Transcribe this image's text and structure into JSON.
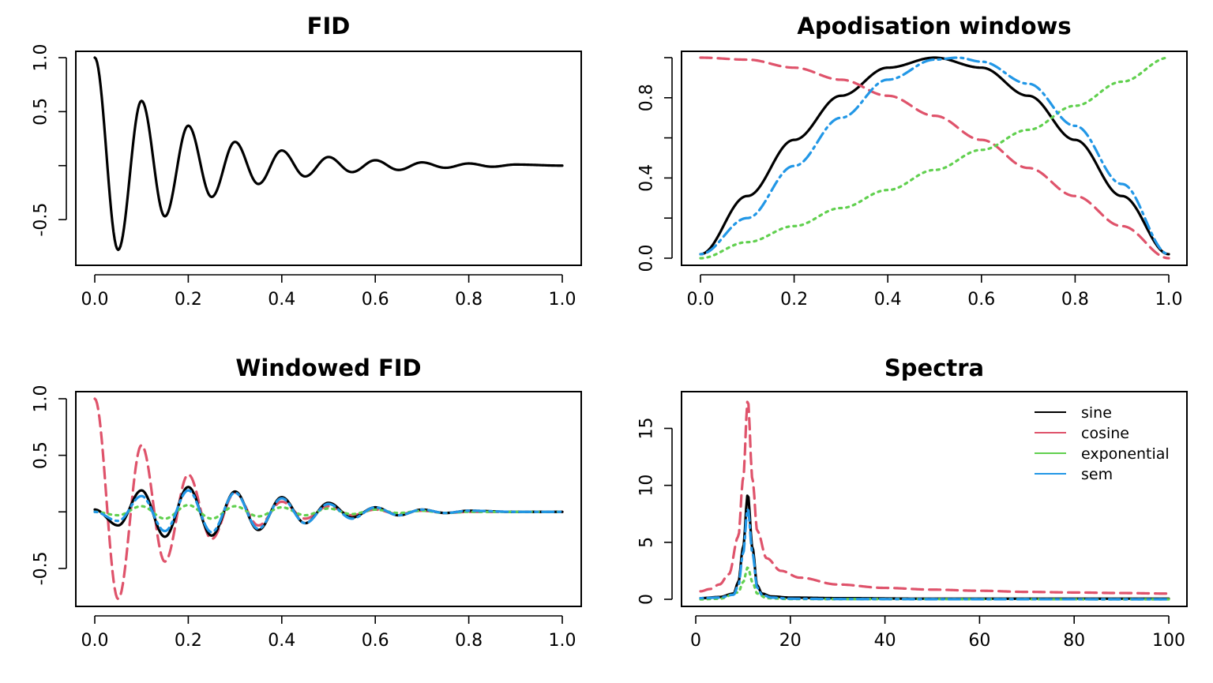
{
  "chart_data": [
    {
      "type": "line",
      "title": "FID",
      "xlabel": "",
      "ylabel": "",
      "xlim": [
        0,
        1
      ],
      "ylim": [
        -0.85,
        1.0
      ],
      "xticks": [
        0,
        0.2,
        0.4,
        0.6,
        0.8,
        1.0
      ],
      "xtick_labels": [
        "0.0",
        "0.2",
        "0.4",
        "0.6",
        "0.8",
        "1.0"
      ],
      "yticks": [
        -0.5,
        0,
        0.5,
        1.0
      ],
      "ytick_labels": [
        "-0.5",
        "",
        "0.5",
        "1.0"
      ],
      "grid": false,
      "series": [
        {
          "color": "#000000",
          "style": "solid",
          "x": [
            0,
            0.05,
            0.1,
            0.15,
            0.2,
            0.25,
            0.3,
            0.35,
            0.4,
            0.45,
            0.5,
            0.55,
            0.6,
            0.65,
            0.7,
            0.75,
            0.8,
            0.85,
            0.9,
            1.0
          ],
          "y": [
            1.0,
            -0.78,
            0.6,
            -0.47,
            0.37,
            -0.29,
            0.22,
            -0.17,
            0.14,
            -0.1,
            0.08,
            -0.06,
            0.05,
            -0.04,
            0.03,
            -0.02,
            0.02,
            -0.01,
            0.01,
            0.0
          ]
        }
      ]
    },
    {
      "type": "line",
      "title": "Apodisation windows",
      "xlabel": "",
      "ylabel": "",
      "xlim": [
        0,
        1
      ],
      "ylim": [
        0,
        1.0
      ],
      "xticks": [
        0,
        0.2,
        0.4,
        0.6,
        0.8,
        1.0
      ],
      "xtick_labels": [
        "0.0",
        "0.2",
        "0.4",
        "0.6",
        "0.8",
        "1.0"
      ],
      "yticks": [
        0,
        0.2,
        0.4,
        0.6,
        0.8,
        1.0
      ],
      "ytick_labels": [
        "0.0",
        "",
        "0.4",
        "",
        "0.8",
        ""
      ],
      "grid": false,
      "series": [
        {
          "color": "#000000",
          "style": "solid",
          "x": [
            0,
            0.1,
            0.2,
            0.3,
            0.4,
            0.5,
            0.6,
            0.7,
            0.8,
            0.9,
            1.0
          ],
          "y": [
            0.02,
            0.31,
            0.59,
            0.81,
            0.95,
            1.0,
            0.95,
            0.81,
            0.59,
            0.31,
            0.02
          ]
        },
        {
          "color": "#DF536B",
          "style": "dashed",
          "x": [
            0,
            0.1,
            0.2,
            0.3,
            0.4,
            0.5,
            0.6,
            0.7,
            0.8,
            0.9,
            1.0
          ],
          "y": [
            1.0,
            0.99,
            0.95,
            0.89,
            0.81,
            0.71,
            0.59,
            0.45,
            0.31,
            0.16,
            0.0
          ]
        },
        {
          "color": "#61D04F",
          "style": "dotted",
          "x": [
            0,
            0.1,
            0.2,
            0.3,
            0.4,
            0.5,
            0.6,
            0.7,
            0.8,
            0.9,
            1.0
          ],
          "y": [
            0.0,
            0.08,
            0.16,
            0.25,
            0.34,
            0.44,
            0.54,
            0.64,
            0.76,
            0.88,
            1.0
          ]
        },
        {
          "color": "#2297E6",
          "style": "dotdash",
          "x": [
            0,
            0.1,
            0.2,
            0.3,
            0.4,
            0.5,
            0.55,
            0.6,
            0.7,
            0.8,
            0.9,
            1.0
          ],
          "y": [
            0.02,
            0.2,
            0.46,
            0.7,
            0.89,
            0.99,
            1.0,
            0.98,
            0.87,
            0.66,
            0.37,
            0.02
          ]
        }
      ]
    },
    {
      "type": "line",
      "title": "Windowed FID",
      "xlabel": "",
      "ylabel": "",
      "xlim": [
        0,
        1
      ],
      "ylim": [
        -0.78,
        1.0
      ],
      "xticks": [
        0,
        0.2,
        0.4,
        0.6,
        0.8,
        1.0
      ],
      "xtick_labels": [
        "0.0",
        "0.2",
        "0.4",
        "0.6",
        "0.8",
        "1.0"
      ],
      "yticks": [
        -0.5,
        0,
        0.5,
        1.0
      ],
      "ytick_labels": [
        "-0.5",
        "",
        "0.5",
        "1.0"
      ],
      "grid": false,
      "series": [
        {
          "color": "#DF536B",
          "style": "dashed",
          "x": [
            0,
            0.05,
            0.1,
            0.15,
            0.2,
            0.25,
            0.3,
            0.35,
            0.4,
            0.45,
            0.5,
            0.55,
            0.6,
            0.65,
            0.7,
            0.75,
            0.8,
            0.9,
            1.0
          ],
          "y": [
            1.0,
            -0.77,
            0.59,
            -0.44,
            0.33,
            -0.24,
            0.17,
            -0.12,
            0.09,
            -0.06,
            0.05,
            -0.03,
            0.02,
            -0.02,
            0.01,
            -0.01,
            0.0,
            0.0,
            0.0
          ]
        },
        {
          "color": "#000000",
          "style": "solid",
          "x": [
            0,
            0.05,
            0.1,
            0.15,
            0.2,
            0.25,
            0.3,
            0.35,
            0.4,
            0.45,
            0.5,
            0.55,
            0.6,
            0.65,
            0.7,
            0.75,
            0.8,
            0.9,
            1.0
          ],
          "y": [
            0.02,
            -0.12,
            0.19,
            -0.22,
            0.22,
            -0.21,
            0.18,
            -0.16,
            0.13,
            -0.1,
            0.08,
            -0.05,
            0.04,
            -0.03,
            0.02,
            -0.01,
            0.01,
            0.0,
            0.0
          ]
        },
        {
          "color": "#61D04F",
          "style": "dotted",
          "x": [
            0,
            0.05,
            0.1,
            0.15,
            0.2,
            0.25,
            0.3,
            0.35,
            0.4,
            0.45,
            0.5,
            0.55,
            0.6,
            0.65,
            0.7,
            0.75,
            0.8,
            0.9,
            1.0
          ],
          "y": [
            0.0,
            -0.03,
            0.05,
            -0.06,
            0.06,
            -0.06,
            0.05,
            -0.04,
            0.04,
            -0.03,
            0.03,
            -0.02,
            0.02,
            -0.01,
            0.01,
            -0.01,
            0.0,
            0.0,
            0.0
          ]
        },
        {
          "color": "#2297E6",
          "style": "dotdash",
          "x": [
            0,
            0.05,
            0.1,
            0.15,
            0.2,
            0.25,
            0.3,
            0.35,
            0.4,
            0.45,
            0.5,
            0.55,
            0.6,
            0.65,
            0.7,
            0.75,
            0.8,
            0.9,
            1.0
          ],
          "y": [
            0.0,
            -0.08,
            0.14,
            -0.17,
            0.19,
            -0.18,
            0.17,
            -0.15,
            0.12,
            -0.1,
            0.07,
            -0.06,
            0.04,
            -0.03,
            0.02,
            -0.01,
            0.01,
            0.0,
            0.0
          ]
        }
      ]
    },
    {
      "type": "line",
      "title": "Spectra",
      "xlabel": "",
      "ylabel": "",
      "xlim": [
        1,
        100
      ],
      "ylim": [
        0,
        17.6
      ],
      "xticks": [
        0,
        20,
        40,
        60,
        80,
        100
      ],
      "xtick_labels": [
        "0",
        "20",
        "40",
        "60",
        "80",
        "100"
      ],
      "yticks": [
        0,
        5,
        10,
        15
      ],
      "ytick_labels": [
        "0",
        "5",
        "10",
        "15"
      ],
      "grid": false,
      "legend": {
        "position": "top-right",
        "entries": [
          {
            "label": "sine",
            "color": "#000000"
          },
          {
            "label": "cosine",
            "color": "#DF536B"
          },
          {
            "label": "exponential",
            "color": "#61D04F"
          },
          {
            "label": "sem",
            "color": "#2297E6"
          }
        ]
      },
      "series": [
        {
          "name": "cosine",
          "color": "#DF536B",
          "style": "dashed",
          "x": [
            1,
            3,
            5,
            7,
            9,
            10,
            11,
            12,
            13,
            15,
            18,
            22,
            30,
            40,
            50,
            60,
            70,
            80,
            90,
            100
          ],
          "y": [
            0.7,
            0.9,
            1.3,
            2.2,
            5.5,
            10.5,
            17.5,
            10.5,
            6.0,
            3.6,
            2.5,
            1.9,
            1.3,
            1.0,
            0.85,
            0.75,
            0.65,
            0.6,
            0.55,
            0.5
          ]
        },
        {
          "name": "sine",
          "color": "#000000",
          "style": "solid",
          "x": [
            1,
            5,
            8,
            9,
            10,
            11,
            12,
            13,
            14,
            16,
            20,
            30,
            50,
            100
          ],
          "y": [
            0.1,
            0.2,
            0.5,
            1.5,
            4.5,
            9.2,
            4.5,
            1.2,
            0.5,
            0.25,
            0.15,
            0.1,
            0.05,
            0.05
          ]
        },
        {
          "name": "exponential",
          "color": "#61D04F",
          "style": "dotted",
          "x": [
            1,
            5,
            9,
            10,
            11,
            12,
            13,
            15,
            20,
            100
          ],
          "y": [
            0.0,
            0.05,
            0.6,
            1.5,
            2.8,
            1.5,
            0.5,
            0.1,
            0.02,
            0.0
          ]
        },
        {
          "name": "sem",
          "color": "#2297E6",
          "style": "dotdash",
          "x": [
            1,
            5,
            8,
            9,
            10,
            11,
            12,
            13,
            14,
            16,
            20,
            30,
            50,
            100
          ],
          "y": [
            0.1,
            0.15,
            0.4,
            1.2,
            4.0,
            8.0,
            4.0,
            1.0,
            0.4,
            0.15,
            0.05,
            0.02,
            0.01,
            0.0
          ]
        }
      ]
    }
  ]
}
